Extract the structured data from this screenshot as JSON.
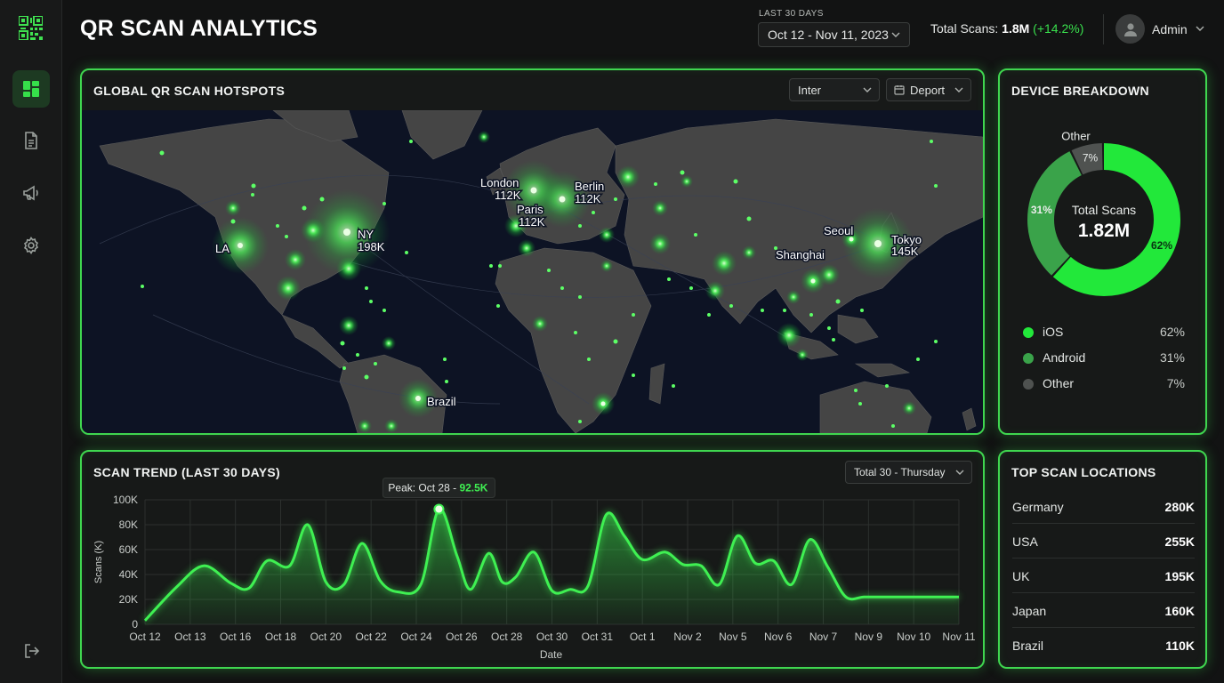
{
  "header": {
    "title": "QR SCAN ANALYTICS",
    "range_label": "LAST 30 DAYS",
    "date_range": "Oct 12 - Nov 11, 2023",
    "total_label": "Total Scans:",
    "total_value": "1.8M",
    "total_delta": "(+14.2%)",
    "user": "Admin"
  },
  "sidebar": {
    "items": [
      {
        "icon": "dashboard-icon",
        "active": true
      },
      {
        "icon": "document-icon",
        "active": false
      },
      {
        "icon": "megaphone-icon",
        "active": false
      },
      {
        "icon": "gear-icon",
        "active": false
      }
    ],
    "bottom_icon": "logout-icon"
  },
  "map": {
    "title": "GLOBAL QR SCAN HOTSPOTS",
    "filter1": "Inter",
    "filter2": "Deport",
    "hotspots": [
      {
        "label": "LA",
        "value": ""
      },
      {
        "label": "NY",
        "value": "198K"
      },
      {
        "label": "London",
        "value": "112K"
      },
      {
        "label": "Paris",
        "value": "112K"
      },
      {
        "label": "Berlin",
        "value": "112K"
      },
      {
        "label": "Seoul",
        "value": ""
      },
      {
        "label": "Shanghai",
        "value": ""
      },
      {
        "label": "Tokyo",
        "value": "145K"
      },
      {
        "label": "Brazil",
        "value": ""
      }
    ]
  },
  "device": {
    "title": "DEVICE BREAKDOWN",
    "center_label": "Total Scans",
    "center_value": "1.82M",
    "segments": [
      {
        "name": "iOS",
        "pct_label": "62%",
        "value": 62,
        "color": "#22e83a"
      },
      {
        "name": "Android",
        "pct_label": "31%",
        "value": 31,
        "color": "#3aa34a"
      },
      {
        "name": "Other",
        "pct_label": "7%",
        "value": 7,
        "color": "#4f5250"
      }
    ]
  },
  "trend": {
    "title": "SCAN TREND (LAST 30 DAYS)",
    "filter": "Total 30 - Thursday",
    "peak_label": "Peak: Oct 28 -",
    "peak_value": "92.5K"
  },
  "chart_data": {
    "type": "area",
    "ylabel": "Scans (K)",
    "xlabel": "Date",
    "yticks": [
      "0",
      "20K",
      "40K",
      "60K",
      "80K",
      "100K"
    ],
    "ylim": [
      0,
      100
    ],
    "grid": true,
    "categories": [
      "Oct 12",
      "Oct 13",
      "Oct 16",
      "Oct 18",
      "Oct 20",
      "Oct 22",
      "Oct 24",
      "Oct 26",
      "Oct 28",
      "Oct 30",
      "Oct 31",
      "Oct 1",
      "Nov 2",
      "Nov 5",
      "Nov 6",
      "Nov 7",
      "Nov 9",
      "Nov 10",
      "Nov 11"
    ],
    "x": [
      0,
      0.7,
      1.3,
      1.9,
      2.3,
      2.7,
      3.2,
      3.6,
      4.0,
      4.4,
      4.8,
      5.2,
      5.6,
      6.1,
      6.5,
      6.9,
      7.2,
      7.6,
      7.9,
      8.2,
      8.6,
      9.0,
      9.4,
      9.8,
      10.2,
      10.6,
      11.0,
      11.5,
      11.9,
      12.3,
      12.7,
      13.1,
      13.5,
      13.9,
      14.3,
      14.7,
      15.1,
      15.5,
      15.9,
      16.3,
      16.7,
      17.1,
      17.5,
      18.0
    ],
    "values": [
      3,
      30,
      47,
      33,
      29,
      51,
      47,
      80,
      34,
      32,
      65,
      35,
      26,
      32,
      92.5,
      55,
      28,
      57,
      34,
      38,
      58,
      27,
      28,
      31,
      88,
      71,
      52,
      58,
      48,
      47,
      32,
      71,
      49,
      51,
      32,
      68,
      46,
      22,
      22,
      22,
      22,
      22,
      22,
      22
    ]
  },
  "locations": {
    "title": "TOP SCAN LOCATIONS",
    "rows": [
      {
        "name": "Germany",
        "value": "280K"
      },
      {
        "name": "USA",
        "value": "255K"
      },
      {
        "name": "UK",
        "value": "195K"
      },
      {
        "name": "Japan",
        "value": "160K"
      },
      {
        "name": "Brazil",
        "value": "110K"
      }
    ]
  }
}
